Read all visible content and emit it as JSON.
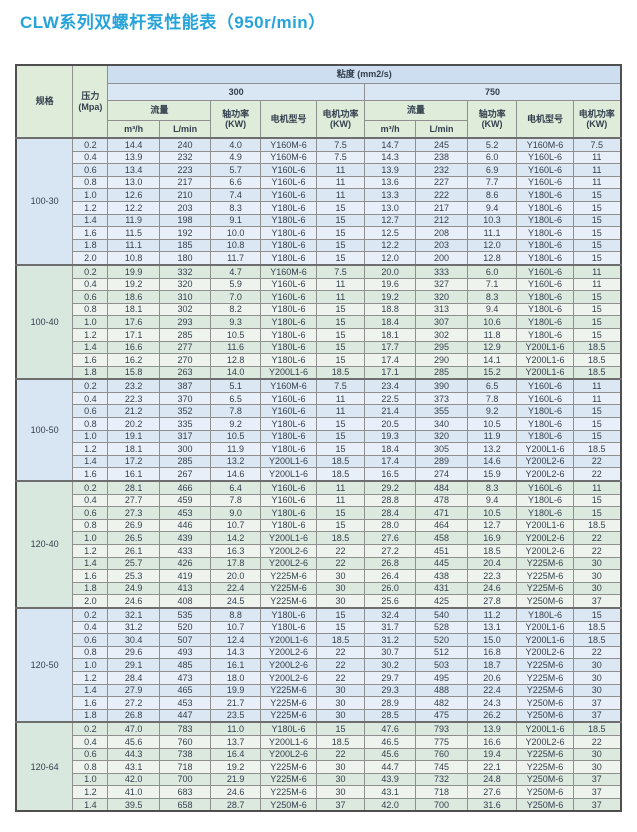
{
  "title": "CLW系列双螺杆泵性能表（950r/min）",
  "colors": {
    "title_accent": "#25a3da",
    "header_blue": "#ccdeef",
    "header_blue_light": "#d9e6f4",
    "header_green": "#e0ecda",
    "section_blue_dark": "#dbe7f3",
    "section_blue_light": "#e9eff8",
    "section_green_dark": "#dbe9df",
    "section_green_light": "#eef4ed",
    "border_outer": "#4f4f4f",
    "border_inner": "#8f8f8f"
  },
  "table": {
    "header": {
      "spec": "规格",
      "pressure": "压力\n(Mpa)",
      "viscosity": "粘度 (mm2/s)",
      "visc_groups": [
        "300",
        "750"
      ],
      "flow": "流量",
      "shaft_power": "轴功率\n(KW)",
      "motor_model": "电机型号",
      "motor_power": "电机功率\n(KW)",
      "flow_m3h": "m³/h",
      "flow_lmin": "L/min"
    },
    "sections": [
      {
        "spec": "100-30",
        "theme": "blue",
        "rows": [
          {
            "p": "0.2",
            "c300": [
              "14.4",
              "240",
              "4.0",
              "Y160M-6",
              "7.5"
            ],
            "c750": [
              "14.7",
              "245",
              "5.2",
              "Y160M-6",
              "7.5"
            ]
          },
          {
            "p": "0.4",
            "c300": [
              "13.9",
              "232",
              "4.9",
              "Y160M-6",
              "7.5"
            ],
            "c750": [
              "14.3",
              "238",
              "6.0",
              "Y160L-6",
              "11"
            ]
          },
          {
            "p": "0.6",
            "c300": [
              "13.4",
              "223",
              "5.7",
              "Y160L-6",
              "11"
            ],
            "c750": [
              "13.9",
              "232",
              "6.9",
              "Y160L-6",
              "11"
            ]
          },
          {
            "p": "0.8",
            "c300": [
              "13.0",
              "217",
              "6.6",
              "Y160L-6",
              "11"
            ],
            "c750": [
              "13.6",
              "227",
              "7.7",
              "Y160L-6",
              "11"
            ]
          },
          {
            "p": "1.0",
            "c300": [
              "12.6",
              "210",
              "7.4",
              "Y160L-6",
              "11"
            ],
            "c750": [
              "13.3",
              "222",
              "8.6",
              "Y180L-6",
              "15"
            ]
          },
          {
            "p": "1.2",
            "c300": [
              "12.2",
              "203",
              "8.3",
              "Y180L-6",
              "15"
            ],
            "c750": [
              "13.0",
              "217",
              "9.4",
              "Y180L-6",
              "15"
            ]
          },
          {
            "p": "1.4",
            "c300": [
              "11.9",
              "198",
              "9.1",
              "Y180L-6",
              "15"
            ],
            "c750": [
              "12.7",
              "212",
              "10.3",
              "Y180L-6",
              "15"
            ]
          },
          {
            "p": "1.6",
            "c300": [
              "11.5",
              "192",
              "10.0",
              "Y180L-6",
              "15"
            ],
            "c750": [
              "12.5",
              "208",
              "11.1",
              "Y180L-6",
              "15"
            ]
          },
          {
            "p": "1.8",
            "c300": [
              "11.1",
              "185",
              "10.8",
              "Y180L-6",
              "15"
            ],
            "c750": [
              "12.2",
              "203",
              "12.0",
              "Y180L-6",
              "15"
            ]
          },
          {
            "p": "2.0",
            "c300": [
              "10.8",
              "180",
              "11.7",
              "Y180L-6",
              "15"
            ],
            "c750": [
              "12.0",
              "200",
              "12.8",
              "Y180L-6",
              "15"
            ]
          }
        ]
      },
      {
        "spec": "100-40",
        "theme": "green",
        "rows": [
          {
            "p": "0.2",
            "c300": [
              "19.9",
              "332",
              "4.7",
              "Y160M-6",
              "7.5"
            ],
            "c750": [
              "20.0",
              "333",
              "6.0",
              "Y160L-6",
              "11"
            ]
          },
          {
            "p": "0.4",
            "c300": [
              "19.2",
              "320",
              "5.9",
              "Y160L-6",
              "11"
            ],
            "c750": [
              "19.6",
              "327",
              "7.1",
              "Y160L-6",
              "11"
            ]
          },
          {
            "p": "0.6",
            "c300": [
              "18.6",
              "310",
              "7.0",
              "Y160L-6",
              "11"
            ],
            "c750": [
              "19.2",
              "320",
              "8.3",
              "Y180L-6",
              "15"
            ]
          },
          {
            "p": "0.8",
            "c300": [
              "18.1",
              "302",
              "8.2",
              "Y180L-6",
              "15"
            ],
            "c750": [
              "18.8",
              "313",
              "9.4",
              "Y180L-6",
              "15"
            ]
          },
          {
            "p": "1.0",
            "c300": [
              "17.6",
              "293",
              "9.3",
              "Y180L-6",
              "15"
            ],
            "c750": [
              "18.4",
              "307",
              "10.6",
              "Y180L-6",
              "15"
            ]
          },
          {
            "p": "1.2",
            "c300": [
              "17.1",
              "285",
              "10.5",
              "Y180L-6",
              "15"
            ],
            "c750": [
              "18.1",
              "302",
              "11.8",
              "Y180L-6",
              "15"
            ]
          },
          {
            "p": "1.4",
            "c300": [
              "16.6",
              "277",
              "11.6",
              "Y180L-6",
              "15"
            ],
            "c750": [
              "17.7",
              "295",
              "12.9",
              "Y200L1-6",
              "18.5"
            ]
          },
          {
            "p": "1.6",
            "c300": [
              "16.2",
              "270",
              "12.8",
              "Y180L-6",
              "15"
            ],
            "c750": [
              "17.4",
              "290",
              "14.1",
              "Y200L1-6",
              "18.5"
            ]
          },
          {
            "p": "1.8",
            "c300": [
              "15.8",
              "263",
              "14.0",
              "Y200L1-6",
              "18.5"
            ],
            "c750": [
              "17.1",
              "285",
              "15.2",
              "Y200L1-6",
              "18.5"
            ]
          }
        ]
      },
      {
        "spec": "100-50",
        "theme": "blue",
        "rows": [
          {
            "p": "0.2",
            "c300": [
              "23.2",
              "387",
              "5.1",
              "Y160M-6",
              "7.5"
            ],
            "c750": [
              "23.4",
              "390",
              "6.5",
              "Y160L-6",
              "11"
            ]
          },
          {
            "p": "0.4",
            "c300": [
              "22.3",
              "370",
              "6.5",
              "Y160L-6",
              "11"
            ],
            "c750": [
              "22.5",
              "373",
              "7.8",
              "Y160L-6",
              "11"
            ]
          },
          {
            "p": "0.6",
            "c300": [
              "21.2",
              "352",
              "7.8",
              "Y160L-6",
              "11"
            ],
            "c750": [
              "21.4",
              "355",
              "9.2",
              "Y180L-6",
              "15"
            ]
          },
          {
            "p": "0.8",
            "c300": [
              "20.2",
              "335",
              "9.2",
              "Y180L-6",
              "15"
            ],
            "c750": [
              "20.5",
              "340",
              "10.5",
              "Y180L-6",
              "15"
            ]
          },
          {
            "p": "1.0",
            "c300": [
              "19.1",
              "317",
              "10.5",
              "Y180L-6",
              "15"
            ],
            "c750": [
              "19.3",
              "320",
              "11.9",
              "Y180L-6",
              "15"
            ]
          },
          {
            "p": "1.2",
            "c300": [
              "18.1",
              "300",
              "11.9",
              "Y180L-6",
              "15"
            ],
            "c750": [
              "18.4",
              "305",
              "13.2",
              "Y200L1-6",
              "18.5"
            ]
          },
          {
            "p": "1.4",
            "c300": [
              "17.2",
              "285",
              "13.2",
              "Y200L1-6",
              "18.5"
            ],
            "c750": [
              "17.4",
              "289",
              "14.6",
              "Y200L2-6",
              "22"
            ]
          },
          {
            "p": "1.6",
            "c300": [
              "16.1",
              "267",
              "14.6",
              "Y200L1-6",
              "18.5"
            ],
            "c750": [
              "16.5",
              "274",
              "15.9",
              "Y200L2-6",
              "22"
            ]
          }
        ]
      },
      {
        "spec": "120-40",
        "theme": "green",
        "rows": [
          {
            "p": "0.2",
            "c300": [
              "28.1",
              "466",
              "6.4",
              "Y160L-6",
              "11"
            ],
            "c750": [
              "29.2",
              "484",
              "8.3",
              "Y160L-6",
              "11"
            ]
          },
          {
            "p": "0.4",
            "c300": [
              "27.7",
              "459",
              "7.8",
              "Y160L-6",
              "11"
            ],
            "c750": [
              "28.8",
              "478",
              "9.4",
              "Y180L-6",
              "15"
            ]
          },
          {
            "p": "0.6",
            "c300": [
              "27.3",
              "453",
              "9.0",
              "Y180L-6",
              "15"
            ],
            "c750": [
              "28.4",
              "471",
              "10.5",
              "Y180L-6",
              "15"
            ]
          },
          {
            "p": "0.8",
            "c300": [
              "26.9",
              "446",
              "10.7",
              "Y180L-6",
              "15"
            ],
            "c750": [
              "28.0",
              "464",
              "12.7",
              "Y200L1-6",
              "18.5"
            ]
          },
          {
            "p": "1.0",
            "c300": [
              "26.5",
              "439",
              "14.2",
              "Y200L1-6",
              "18.5"
            ],
            "c750": [
              "27.6",
              "458",
              "16.9",
              "Y200L2-6",
              "22"
            ]
          },
          {
            "p": "1.2",
            "c300": [
              "26.1",
              "433",
              "16.3",
              "Y200L2-6",
              "22"
            ],
            "c750": [
              "27.2",
              "451",
              "18.5",
              "Y200L2-6",
              "22"
            ]
          },
          {
            "p": "1.4",
            "c300": [
              "25.7",
              "426",
              "17.8",
              "Y200L2-6",
              "22"
            ],
            "c750": [
              "26.8",
              "445",
              "20.4",
              "Y225M-6",
              "30"
            ]
          },
          {
            "p": "1.6",
            "c300": [
              "25.3",
              "419",
              "20.0",
              "Y225M-6",
              "30"
            ],
            "c750": [
              "26.4",
              "438",
              "22.3",
              "Y225M-6",
              "30"
            ]
          },
          {
            "p": "1.8",
            "c300": [
              "24.9",
              "413",
              "22.4",
              "Y225M-6",
              "30"
            ],
            "c750": [
              "26.0",
              "431",
              "24.6",
              "Y225M-6",
              "30"
            ]
          },
          {
            "p": "2.0",
            "c300": [
              "24.6",
              "408",
              "24.5",
              "Y225M-6",
              "30"
            ],
            "c750": [
              "25.6",
              "425",
              "27.8",
              "Y250M-6",
              "37"
            ]
          }
        ]
      },
      {
        "spec": "120-50",
        "theme": "blue",
        "rows": [
          {
            "p": "0.2",
            "c300": [
              "32.1",
              "535",
              "8.8",
              "Y180L-6",
              "15"
            ],
            "c750": [
              "32.4",
              "540",
              "11.2",
              "Y180L-6",
              "15"
            ]
          },
          {
            "p": "0.4",
            "c300": [
              "31.2",
              "520",
              "10.7",
              "Y180L-6",
              "15"
            ],
            "c750": [
              "31.7",
              "528",
              "13.1",
              "Y200L1-6",
              "18.5"
            ]
          },
          {
            "p": "0.6",
            "c300": [
              "30.4",
              "507",
              "12.4",
              "Y200L1-6",
              "18.5"
            ],
            "c750": [
              "31.2",
              "520",
              "15.0",
              "Y200L1-6",
              "18.5"
            ]
          },
          {
            "p": "0.8",
            "c300": [
              "29.6",
              "493",
              "14.3",
              "Y200L2-6",
              "22"
            ],
            "c750": [
              "30.7",
              "512",
              "16.8",
              "Y200L2-6",
              "22"
            ]
          },
          {
            "p": "1.0",
            "c300": [
              "29.1",
              "485",
              "16.1",
              "Y200L2-6",
              "22"
            ],
            "c750": [
              "30.2",
              "503",
              "18.7",
              "Y225M-6",
              "30"
            ]
          },
          {
            "p": "1.2",
            "c300": [
              "28.4",
              "473",
              "18.0",
              "Y200L2-6",
              "22"
            ],
            "c750": [
              "29.7",
              "495",
              "20.6",
              "Y225M-6",
              "30"
            ]
          },
          {
            "p": "1.4",
            "c300": [
              "27.9",
              "465",
              "19.9",
              "Y225M-6",
              "30"
            ],
            "c750": [
              "29.3",
              "488",
              "22.4",
              "Y225M-6",
              "30"
            ]
          },
          {
            "p": "1.6",
            "c300": [
              "27.2",
              "453",
              "21.7",
              "Y225M-6",
              "30"
            ],
            "c750": [
              "28.9",
              "482",
              "24.3",
              "Y250M-6",
              "37"
            ]
          },
          {
            "p": "1.8",
            "c300": [
              "26.8",
              "447",
              "23.5",
              "Y225M-6",
              "30"
            ],
            "c750": [
              "28.5",
              "475",
              "26.2",
              "Y250M-6",
              "37"
            ]
          }
        ]
      },
      {
        "spec": "120-64",
        "theme": "green",
        "rows": [
          {
            "p": "0.2",
            "c300": [
              "47.0",
              "783",
              "11.0",
              "Y180L-6",
              "15"
            ],
            "c750": [
              "47.6",
              "793",
              "13.9",
              "Y200L1-6",
              "18.5"
            ]
          },
          {
            "p": "0.4",
            "c300": [
              "45.6",
              "760",
              "13.7",
              "Y200L1-6",
              "18.5"
            ],
            "c750": [
              "46.5",
              "775",
              "16.6",
              "Y200L2-6",
              "22"
            ]
          },
          {
            "p": "0.6",
            "c300": [
              "44.3",
              "738",
              "16.4",
              "Y200L2-6",
              "22"
            ],
            "c750": [
              "45.6",
              "760",
              "19.4",
              "Y225M-6",
              "30"
            ]
          },
          {
            "p": "0.8",
            "c300": [
              "43.1",
              "718",
              "19.2",
              "Y225M-6",
              "30"
            ],
            "c750": [
              "44.7",
              "745",
              "22.1",
              "Y225M-6",
              "30"
            ]
          },
          {
            "p": "1.0",
            "c300": [
              "42.0",
              "700",
              "21.9",
              "Y225M-6",
              "30"
            ],
            "c750": [
              "43.9",
              "732",
              "24.8",
              "Y250M-6",
              "37"
            ]
          },
          {
            "p": "1.2",
            "c300": [
              "41.0",
              "683",
              "24.6",
              "Y225M-6",
              "30"
            ],
            "c750": [
              "43.1",
              "718",
              "27.6",
              "Y250M-6",
              "37"
            ]
          },
          {
            "p": "1.4",
            "c300": [
              "39.5",
              "658",
              "28.7",
              "Y250M-6",
              "37"
            ],
            "c750": [
              "42.0",
              "700",
              "31.6",
              "Y250M-6",
              "37"
            ]
          }
        ]
      }
    ]
  }
}
